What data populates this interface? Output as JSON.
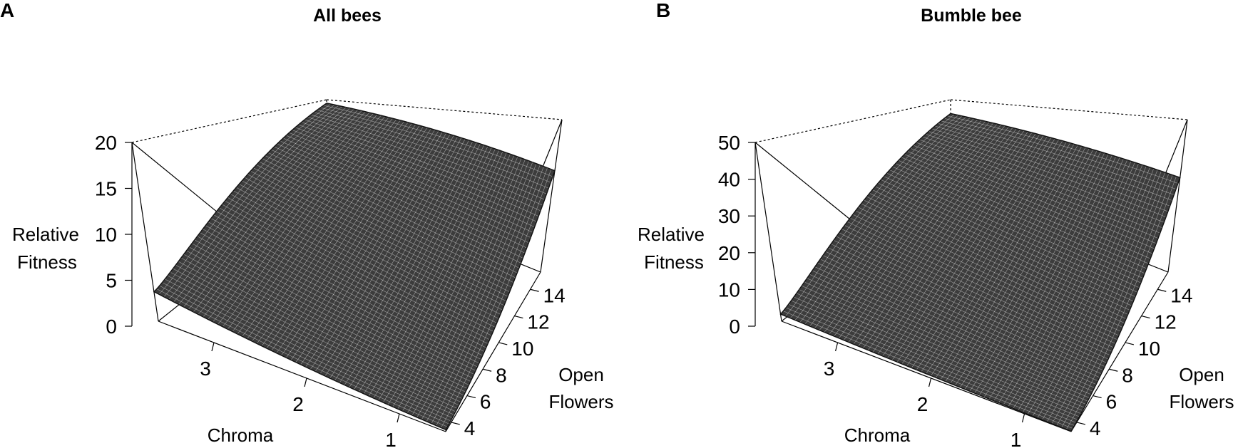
{
  "chart_data": [
    {
      "type": "surface",
      "panel_label": "A",
      "title": "All bees",
      "zlabel": [
        "Relative",
        "Fitness"
      ],
      "xlabel": "Chroma",
      "ylabel": [
        "Open",
        "Flowers"
      ],
      "zlim": [
        0,
        20
      ],
      "z_ticks": [
        "0",
        "5",
        "10",
        "15",
        "20"
      ],
      "xlim": [
        0.5,
        3.6
      ],
      "x_ticks": [
        "1",
        "2",
        "3"
      ],
      "ylim": [
        3.3,
        15.3
      ],
      "y_ticks": [
        "4",
        "6",
        "8",
        "10",
        "12",
        "14"
      ],
      "surface_corners": {
        "chroma_high_flowers_low": 3.3,
        "chroma_low_flowers_low": 1.2,
        "chroma_high_flowers_high": 19.2,
        "chroma_low_flowers_high": 13.3
      }
    },
    {
      "type": "surface",
      "panel_label": "B",
      "title": "Bumble bee",
      "zlabel": [
        "Relative",
        "Fitness"
      ],
      "xlabel": "Chroma",
      "ylabel": [
        "Open",
        "Flowers"
      ],
      "zlim": [
        0,
        50
      ],
      "z_ticks": [
        "0",
        "10",
        "20",
        "30",
        "40",
        "50"
      ],
      "xlim": [
        0.5,
        3.6
      ],
      "x_ticks": [
        "1",
        "2",
        "3"
      ],
      "ylim": [
        3.3,
        15.3
      ],
      "y_ticks": [
        "4",
        "6",
        "8",
        "10",
        "12",
        "14"
      ],
      "surface_corners": {
        "chroma_high_flowers_low": 2.0,
        "chroma_low_flowers_low": 0.6,
        "chroma_high_flowers_high": 42.0,
        "chroma_low_flowers_high": 31.0
      }
    }
  ],
  "colors": {
    "surface": "#3c3c3c",
    "mesh": "#ffffff",
    "axes": "#000000"
  }
}
